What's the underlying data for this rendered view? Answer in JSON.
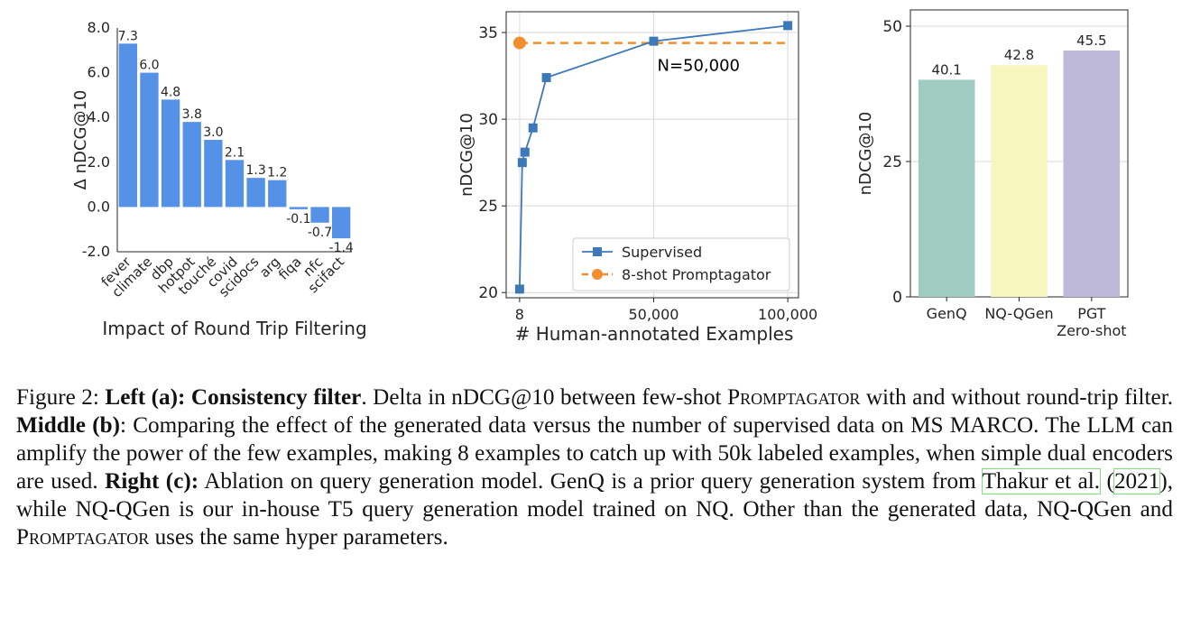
{
  "chart_data": [
    {
      "type": "bar",
      "panel": "left",
      "categories": [
        "fever",
        "climate",
        "dbp",
        "hotpot",
        "touché",
        "covid",
        "scidocs",
        "arg",
        "fiqa",
        "nfc",
        "scifact"
      ],
      "values": [
        7.3,
        6.0,
        4.8,
        3.8,
        3.0,
        2.1,
        1.3,
        1.2,
        -0.1,
        -0.7,
        -1.4
      ],
      "value_labels": [
        "7.3",
        "6.0",
        "4.8",
        "3.8",
        "3.0",
        "2.1",
        "1.3",
        "1.2",
        "-0.1",
        "-0.7",
        "-1.4"
      ],
      "ylabel": "Δ nDCG@10",
      "xlabel": "Impact of Round Trip Filtering",
      "ylim": [
        -2.0,
        8.0
      ],
      "yticks": [
        -2.0,
        0.0,
        2.0,
        4.0,
        6.0,
        8.0
      ],
      "ytick_labels": [
        "-2.0",
        "0.0",
        "2.0",
        "4.0",
        "6.0",
        "8.0"
      ],
      "bar_color": "#5591e6",
      "grid": false
    },
    {
      "type": "line",
      "panel": "middle",
      "series": [
        {
          "name": "Supervised",
          "x": [
            8,
            1000,
            2000,
            5000,
            10000,
            50000,
            100000
          ],
          "y": [
            20.2,
            27.5,
            28.1,
            29.5,
            32.4,
            34.5,
            35.4
          ],
          "color": "#3d79b9",
          "marker": "square"
        },
        {
          "name": "8-shot Promptagator",
          "x": [
            8
          ],
          "y": [
            34.4
          ],
          "color": "#f28e2b",
          "marker": "circle",
          "style": "dashed-horizontal"
        }
      ],
      "annotation": "N=50,000",
      "xlabel": "# Human-annotated Examples",
      "ylabel": "nDCG@10",
      "xticks": [
        8,
        50000,
        100000
      ],
      "xtick_labels": [
        "8",
        "50,000",
        "100,000"
      ],
      "yticks": [
        20,
        25,
        30,
        35
      ],
      "ytick_labels": [
        "20",
        "25",
        "30",
        "35"
      ],
      "xlim": [
        -5000,
        104000
      ],
      "ylim": [
        19.7,
        36.2
      ],
      "legend_position": "bottom-right",
      "grid": true
    },
    {
      "type": "bar",
      "panel": "right",
      "categories": [
        "GenQ",
        "NQ-QGen",
        "PGT"
      ],
      "category_sublabels": [
        "",
        "",
        "Zero-shot"
      ],
      "values": [
        40.1,
        42.8,
        45.5
      ],
      "value_labels": [
        "40.1",
        "42.8",
        "45.5"
      ],
      "colors": [
        "#a0cbc1",
        "#f7f6be",
        "#beb9d9"
      ],
      "ylabel": "nDCG@10",
      "ylim": [
        0,
        53
      ],
      "yticks": [
        0,
        25,
        50
      ],
      "ytick_labels": [
        "0",
        "25",
        "50"
      ],
      "grid": true
    }
  ],
  "caption": {
    "figure_label": "Figure 2: ",
    "left_label": "Left (a): Consistency filter",
    "left_text_1": ". Delta in nDCG@10 between few-shot ",
    "promptagator": "Promptagator",
    "left_text_2": " with and without round-trip filter. ",
    "middle_label": "Middle (b)",
    "middle_text": ": Comparing the effect of the generated data versus the number of supervised data on MS MARCO. The LLM can amplify the power of the few examples, making 8 examples to catch up with 50k labeled examples, when simple dual encoders are used. ",
    "right_label": "Right (c):",
    "right_text_1": " Ablation on query generation model. GenQ is a prior query generation system from ",
    "cite_author": "Thakur et al.",
    "cite_open": " (",
    "cite_year": "2021",
    "right_text_2": "), while NQ-QGen is our in-house T5 query generation model trained on NQ. Other than the generated data, NQ-QGen and ",
    "right_text_3": " uses the same hyper parameters."
  }
}
